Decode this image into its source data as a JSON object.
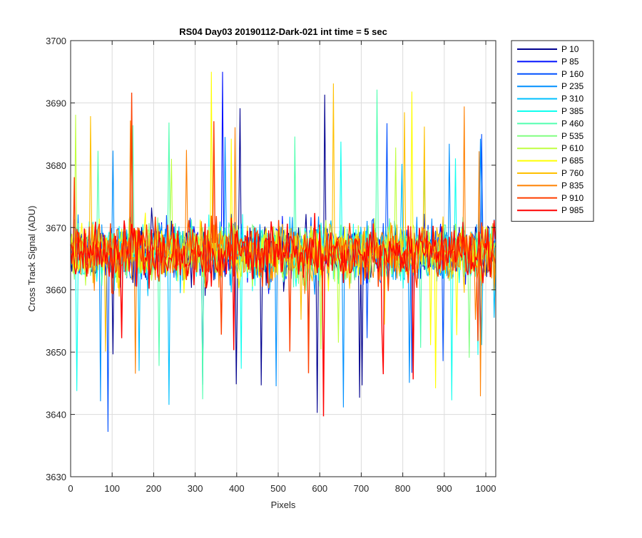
{
  "chart_data": {
    "type": "line",
    "title": "RS04 Day03 20190112-Dark-021 int time = 5 sec",
    "xlabel": "Pixels",
    "ylabel": "Cross Track Signal (ADU)",
    "xlim": [
      0,
      1024
    ],
    "ylim": [
      3630,
      3700
    ],
    "xticks": [
      0,
      100,
      200,
      300,
      400,
      500,
      600,
      700,
      800,
      900,
      1000
    ],
    "yticks": [
      3630,
      3640,
      3650,
      3660,
      3670,
      3680,
      3690,
      3700
    ],
    "grid": true,
    "legend_position": "outside-top-right",
    "noise": {
      "mean": 3666,
      "typical_min": 3649,
      "typical_max": 3684,
      "observed_min": 3637,
      "observed_max": 3695
    },
    "series": [
      {
        "name": "P 10",
        "color": "#00008f"
      },
      {
        "name": "P 85",
        "color": "#0010ff"
      },
      {
        "name": "P 160",
        "color": "#0050ff"
      },
      {
        "name": "P 235",
        "color": "#0090ff"
      },
      {
        "name": "P 310",
        "color": "#00c0ff"
      },
      {
        "name": "P 385",
        "color": "#10ffef"
      },
      {
        "name": "P 460",
        "color": "#50ffaf"
      },
      {
        "name": "P 535",
        "color": "#80ff80"
      },
      {
        "name": "P 610",
        "color": "#c0ff40"
      },
      {
        "name": "P 685",
        "color": "#ffff00"
      },
      {
        "name": "P 760",
        "color": "#ffc000"
      },
      {
        "name": "P 835",
        "color": "#ff8000"
      },
      {
        "name": "P 910",
        "color": "#ff4000"
      },
      {
        "name": "P 985",
        "color": "#ff0000"
      }
    ]
  }
}
